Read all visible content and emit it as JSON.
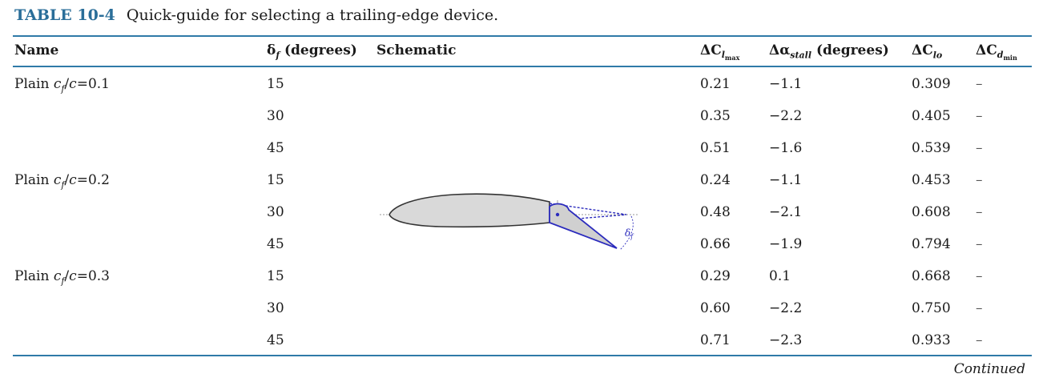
{
  "caption": {
    "label": "TABLE 10-4",
    "text": "Quick-guide for selecting a trailing-edge device."
  },
  "headers": {
    "name": "Name",
    "delta_f_sym": "δ",
    "delta_f_sub": "f",
    "delta_f_unit": "(degrees)",
    "schematic": "Schematic",
    "dcl_sym": "ΔC",
    "dcl_sub": "l",
    "dcl_subsub": "max",
    "dalpha_sym": "Δα",
    "dalpha_sub": "stall",
    "dalpha_unit": "(degrees)",
    "dclo_sym": "ΔC",
    "dclo_sub": "lo",
    "dcd_sym": "ΔC",
    "dcd_sub": "d",
    "dcd_subsub": "min"
  },
  "groups": [
    {
      "name_prefix": "Plain",
      "ratio": "0.1"
    },
    {
      "name_prefix": "Plain",
      "ratio": "0.2"
    },
    {
      "name_prefix": "Plain",
      "ratio": "0.3"
    }
  ],
  "rows": [
    {
      "df": "15",
      "dcl": "0.21",
      "da": "−1.1",
      "dclo": "0.309",
      "dcd": "–"
    },
    {
      "df": "30",
      "dcl": "0.35",
      "da": "−2.2",
      "dclo": "0.405",
      "dcd": "–"
    },
    {
      "df": "45",
      "dcl": "0.51",
      "da": "−1.6",
      "dclo": "0.539",
      "dcd": "–"
    },
    {
      "df": "15",
      "dcl": "0.24",
      "da": "−1.1",
      "dclo": "0.453",
      "dcd": "–"
    },
    {
      "df": "30",
      "dcl": "0.48",
      "da": "−2.1",
      "dclo": "0.608",
      "dcd": "–"
    },
    {
      "df": "45",
      "dcl": "0.66",
      "da": "−1.9",
      "dclo": "0.794",
      "dcd": "–"
    },
    {
      "df": "15",
      "dcl": "0.29",
      "da": "0.1",
      "dclo": "0.668",
      "dcd": "–"
    },
    {
      "df": "30",
      "dcl": "0.60",
      "da": "−2.2",
      "dclo": "0.750",
      "dcd": "–"
    },
    {
      "df": "45",
      "dcl": "0.71",
      "da": "−2.3",
      "dclo": "0.933",
      "dcd": "–"
    }
  ],
  "schematic_label": {
    "sym": "δ",
    "sub": "f"
  },
  "colors": {
    "accent": "#2f7aa8",
    "flap": "#2b2bbd",
    "airfoil_fill": "#d9d9d9"
  },
  "footer": {
    "continued": "Continued"
  }
}
